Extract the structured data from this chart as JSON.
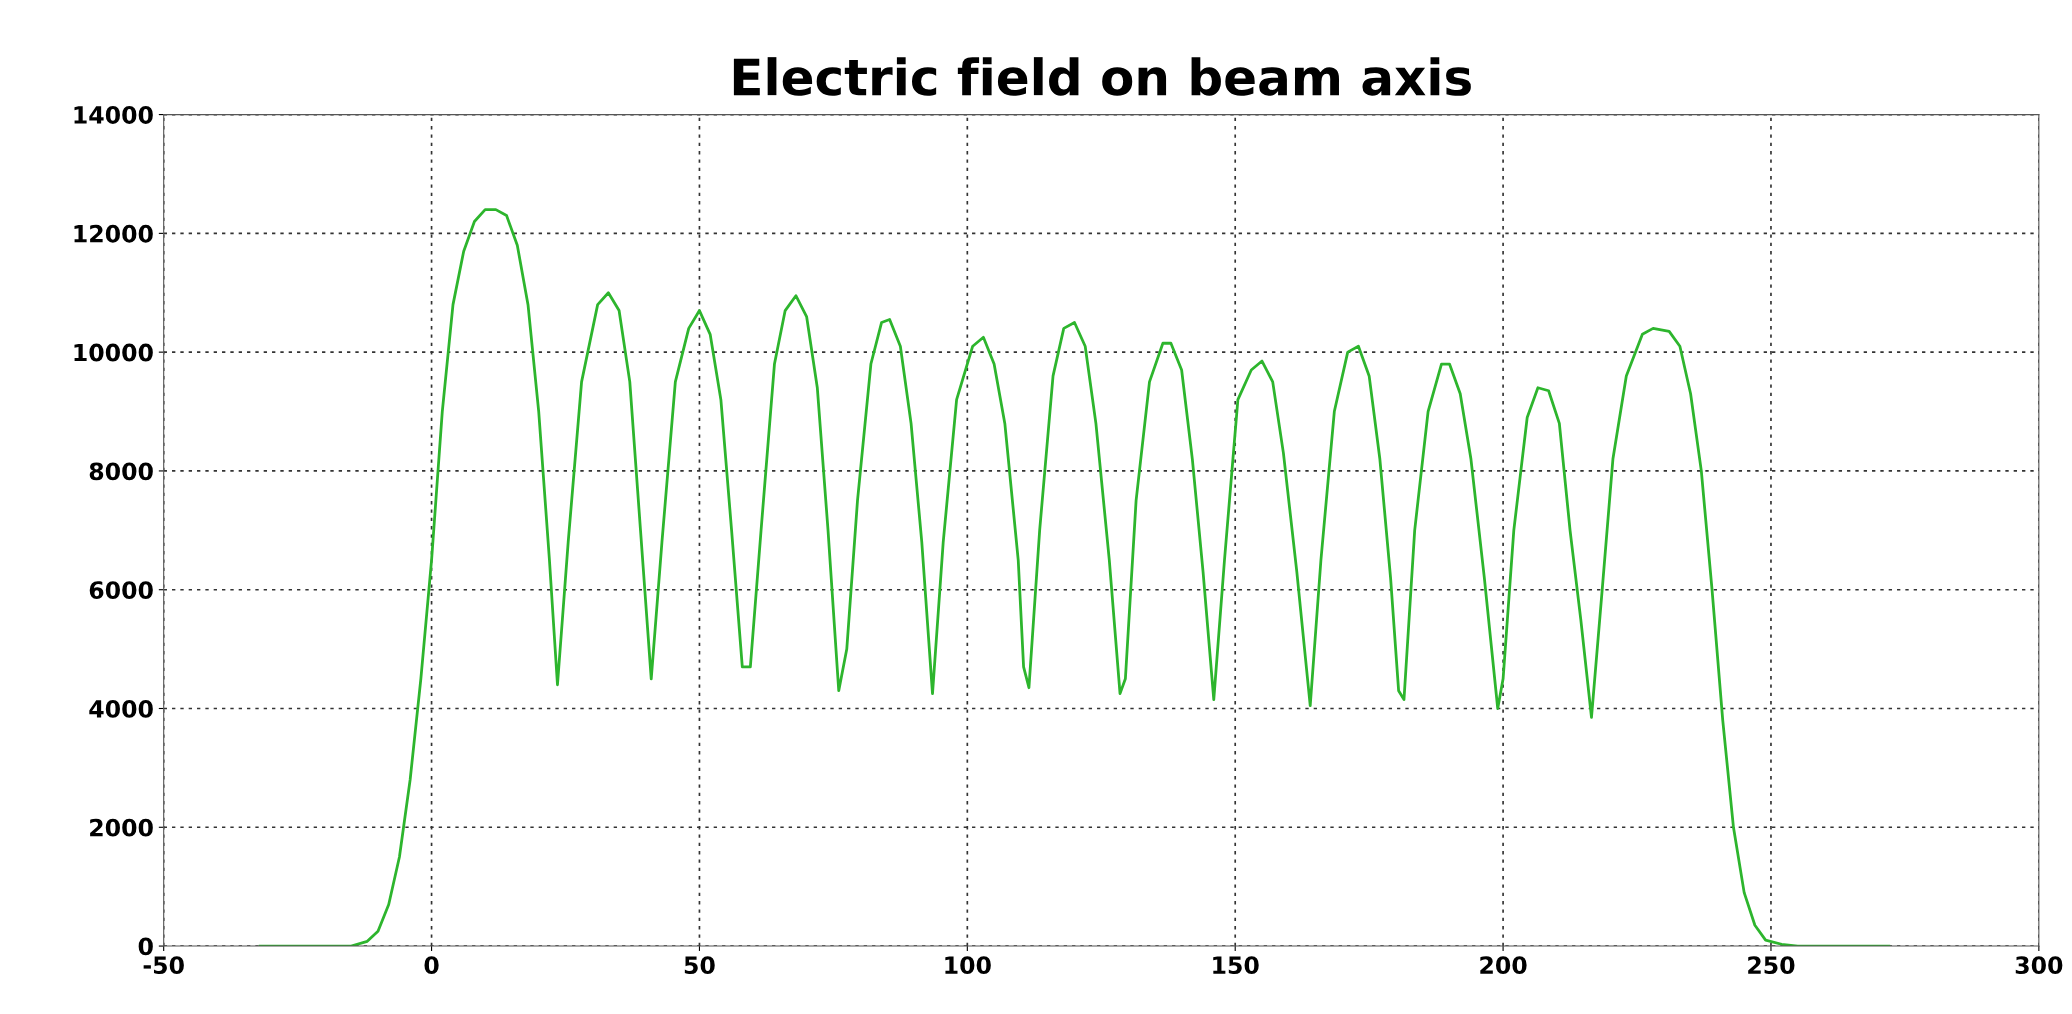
{
  "chart_data": {
    "type": "line",
    "title": "Electric field on beam axis",
    "xlim": [
      -50,
      300
    ],
    "xticks": [
      -50,
      0,
      50,
      100,
      150,
      200,
      250,
      300
    ],
    "ylim": [
      0,
      14000
    ],
    "yticks": [
      0,
      2000,
      4000,
      6000,
      8000,
      10000,
      12000,
      14000
    ],
    "grid": true,
    "line_style": "solid",
    "marker": "none",
    "series": [
      {
        "color": "#2db52d",
        "x": [
          -32,
          -15,
          -12,
          -10,
          -8,
          -6,
          -4,
          -2,
          0,
          2,
          4,
          6,
          8,
          10,
          12,
          14,
          16,
          18,
          20,
          22,
          23.5,
          25.5,
          28,
          31,
          33,
          35,
          37,
          39,
          41,
          43,
          45.5,
          48,
          50,
          52,
          54,
          56,
          58,
          59.5,
          61.5,
          64,
          66,
          68,
          70,
          72,
          74,
          76,
          77.5,
          79.5,
          82,
          84,
          85.5,
          87.5,
          89.5,
          91.5,
          93.5,
          95.5,
          98,
          101,
          103,
          105,
          107,
          109.5,
          110.5,
          111.5,
          113.5,
          116,
          118,
          120,
          122,
          124,
          126.5,
          128.5,
          129.5,
          131.5,
          134,
          136.5,
          138,
          140,
          142,
          144,
          146,
          148,
          150.5,
          153,
          155,
          157,
          159,
          161.5,
          164,
          166,
          168.5,
          171,
          173,
          175,
          177,
          179,
          180.5,
          181.5,
          183.5,
          186,
          188.5,
          190,
          192,
          194,
          196.5,
          199,
          200,
          202,
          204.5,
          206.5,
          208.5,
          210.5,
          212.5,
          214.5,
          216.5,
          218.5,
          220.5,
          223,
          226,
          228,
          231,
          233,
          235,
          237,
          239,
          241,
          243,
          245,
          247,
          249,
          252,
          255,
          272
        ],
        "values": [
          0,
          0,
          80,
          250,
          700,
          1500,
          2800,
          4500,
          6500,
          9000,
          10800,
          11700,
          12200,
          12400,
          12400,
          12300,
          11800,
          10800,
          9000,
          6500,
          4400,
          6800,
          9500,
          10800,
          11000,
          10700,
          9500,
          7000,
          4500,
          6800,
          9500,
          10400,
          10700,
          10300,
          9200,
          7000,
          4700,
          4700,
          7000,
          9800,
          10700,
          10950,
          10600,
          9400,
          7000,
          4300,
          5000,
          7500,
          9800,
          10500,
          10550,
          10100,
          8800,
          6800,
          4250,
          6800,
          9200,
          10100,
          10250,
          9800,
          8800,
          6500,
          4700,
          4350,
          7000,
          9600,
          10400,
          10500,
          10100,
          8800,
          6500,
          4250,
          4500,
          7500,
          9500,
          10150,
          10150,
          9700,
          8200,
          6300,
          4150,
          6500,
          9200,
          9700,
          9850,
          9500,
          8300,
          6300,
          4050,
          6500,
          9000,
          10000,
          10100,
          9600,
          8200,
          6200,
          4300,
          4150,
          7000,
          9000,
          9800,
          9800,
          9300,
          8200,
          6200,
          4000,
          4500,
          7000,
          8900,
          9400,
          9350,
          8800,
          7000,
          5500,
          3850,
          6000,
          8200,
          9600,
          10300,
          10400,
          10350,
          10100,
          9300,
          8000,
          6000,
          3800,
          2000,
          900,
          350,
          100,
          30,
          0,
          0
        ]
      }
    ]
  }
}
